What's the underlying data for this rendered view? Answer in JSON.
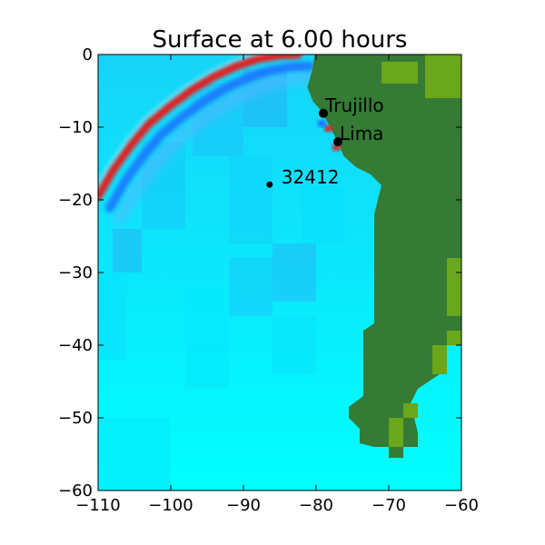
{
  "chart_data": {
    "type": "heatmap",
    "title": "Surface at 6.00 hours",
    "xlabel": "",
    "ylabel": "",
    "xlim": [
      -110,
      -60
    ],
    "ylim": [
      -60,
      0
    ],
    "x_ticks": [
      -110,
      -100,
      -90,
      -80,
      -70,
      -60
    ],
    "y_ticks": [
      0,
      -10,
      -20,
      -30,
      -40,
      -50,
      -60
    ],
    "x_tick_labels": [
      "−110",
      "−100",
      "−90",
      "−80",
      "−70",
      "−60"
    ],
    "y_tick_labels": [
      "0",
      "−10",
      "−20",
      "−30",
      "−40",
      "−50",
      "−60"
    ],
    "grid": false,
    "colors": {
      "ocean": "#00ffff",
      "land": "#357a35",
      "highland": "#6aa71a",
      "wave_positive": "#e02020",
      "wave_negative": "#1a6cff"
    },
    "markers": [
      {
        "label": "Trujillo",
        "lon": -79.0,
        "lat": -8.1
      },
      {
        "label": "Lima",
        "lon": -77.0,
        "lat": -12.0
      },
      {
        "label": "32412",
        "lon": -86.4,
        "lat": -17.9
      }
    ],
    "land_outline_lonlat": [
      [
        -80.2,
        0
      ],
      [
        -80.5,
        -2.0
      ],
      [
        -81.2,
        -4.5
      ],
      [
        -80.4,
        -6.5
      ],
      [
        -79.5,
        -7.5
      ],
      [
        -78.6,
        -9.0
      ],
      [
        -77.8,
        -10.5
      ],
      [
        -76.8,
        -12.5
      ],
      [
        -76.2,
        -14.0
      ],
      [
        -74.5,
        -15.5
      ],
      [
        -72.5,
        -16.5
      ],
      [
        -71.5,
        -17.5
      ],
      [
        -71.0,
        -18.0
      ],
      [
        -72.0,
        -22.0
      ],
      [
        -72.0,
        -28.0
      ],
      [
        -72.0,
        -34.0
      ],
      [
        -72.0,
        -37.0
      ],
      [
        -73.5,
        -38.0
      ],
      [
        -73.5,
        -43.0
      ],
      [
        -73.5,
        -47.0
      ],
      [
        -75.5,
        -48.5
      ],
      [
        -75.5,
        -50.0
      ],
      [
        -74.0,
        -51.5
      ],
      [
        -74.0,
        -53.5
      ],
      [
        -72.0,
        -54.0
      ],
      [
        -70.0,
        -54.0
      ],
      [
        -70.0,
        -55.5
      ],
      [
        -68.0,
        -55.5
      ],
      [
        -68.0,
        -54.0
      ],
      [
        -66.0,
        -54.0
      ],
      [
        -66.0,
        -52.0
      ],
      [
        -67.0,
        -48.0
      ],
      [
        -66.0,
        -46.0
      ],
      [
        -63.0,
        -44.0
      ],
      [
        -62.0,
        -40.0
      ],
      [
        -60.0,
        -39.0
      ],
      [
        -60.0,
        0
      ]
    ],
    "highland_patches_lonlat": [
      [
        [
          -71,
          -1
        ],
        [
          -66,
          -1
        ],
        [
          -66,
          -4
        ],
        [
          -71,
          -4
        ]
      ],
      [
        [
          -65,
          0
        ],
        [
          -60,
          0
        ],
        [
          -60,
          -6
        ],
        [
          -65,
          -6
        ]
      ],
      [
        [
          -62,
          -28
        ],
        [
          -60,
          -28
        ],
        [
          -60,
          -36
        ],
        [
          -62,
          -36
        ]
      ],
      [
        [
          -62,
          -38
        ],
        [
          -60,
          -38
        ],
        [
          -60,
          -40
        ],
        [
          -62,
          -40
        ]
      ],
      [
        [
          -64,
          -40
        ],
        [
          -62,
          -40
        ],
        [
          -62,
          -44
        ],
        [
          -64,
          -44
        ]
      ],
      [
        [
          -68,
          -48
        ],
        [
          -66,
          -48
        ],
        [
          -66,
          -50
        ],
        [
          -68,
          -50
        ]
      ],
      [
        [
          -70,
          -50
        ],
        [
          -68,
          -50
        ],
        [
          -68,
          -54
        ],
        [
          -70,
          -54
        ]
      ]
    ],
    "wave_front_lonlat": [
      [
        -110,
        -19.5
      ],
      [
        -108,
        -16.0
      ],
      [
        -105.5,
        -12.5
      ],
      [
        -103,
        -9.5
      ],
      [
        -100,
        -7.0
      ],
      [
        -97,
        -4.8
      ],
      [
        -94,
        -3.0
      ],
      [
        -91,
        -1.6
      ],
      [
        -88,
        -0.6
      ],
      [
        -85,
        -0.1
      ],
      [
        -82.5,
        0
      ]
    ],
    "coastal_anomalies_lonlat": [
      {
        "kind": "wave_positive",
        "lon": -78.3,
        "lat": -10.2
      },
      {
        "kind": "wave_positive",
        "lon": -77.2,
        "lat": -12.8
      },
      {
        "kind": "wave_negative",
        "lon": -79.2,
        "lat": -9.5
      }
    ]
  }
}
